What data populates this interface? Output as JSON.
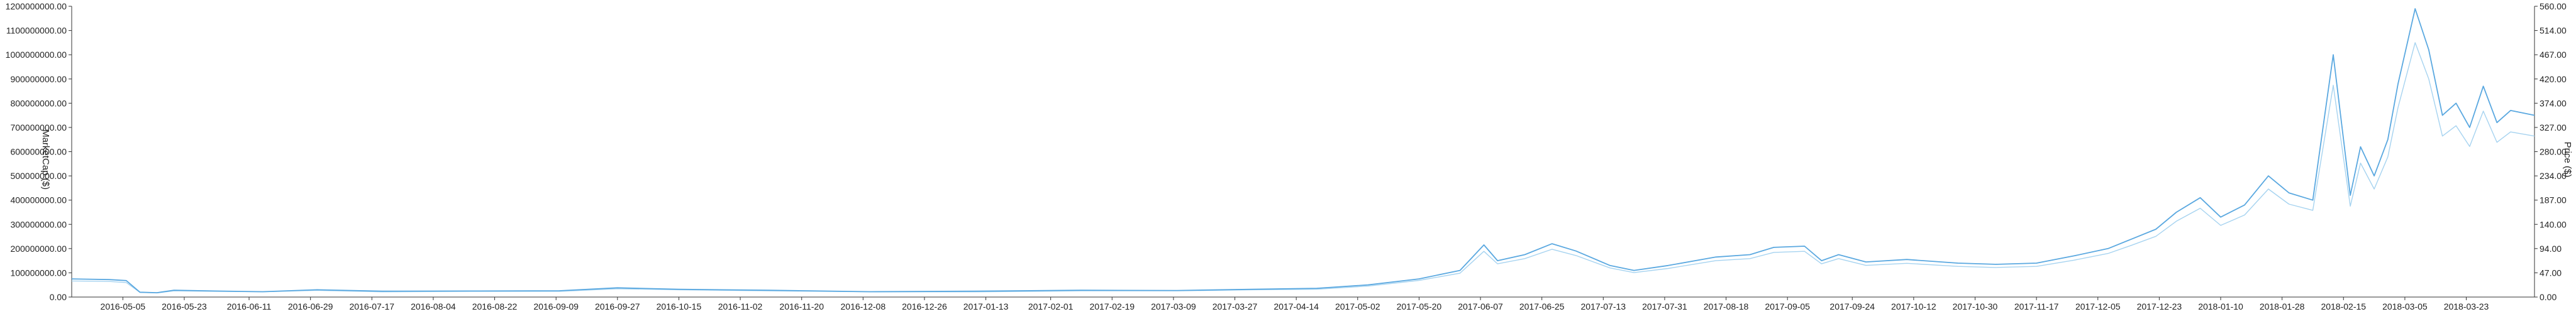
{
  "chart_data": {
    "type": "line",
    "xlabel": "",
    "ylabel_left": "MarketCap ($)",
    "ylabel_right": "Price ($)",
    "left_axis": {
      "min": 0,
      "max": 1200000000,
      "ticks": [
        "0.00",
        "100000000.00",
        "200000000.00",
        "300000000.00",
        "400000000.00",
        "500000000.00",
        "600000000.00",
        "700000000.00",
        "800000000.00",
        "900000000.00",
        "1000000000.00",
        "1100000000.00",
        "1200000000.00"
      ]
    },
    "right_axis": {
      "min": 0,
      "max": 560,
      "ticks": [
        "0.00",
        "47.00",
        "94.00",
        "140.00",
        "187.00",
        "234.00",
        "280.00",
        "327.00",
        "374.00",
        "420.00",
        "467.00",
        "514.00",
        "560.00"
      ]
    },
    "x_domain": [
      "2016-04-20",
      "2018-04-12"
    ],
    "x_ticks": [
      "2016-05-05",
      "2016-05-23",
      "2016-06-11",
      "2016-06-29",
      "2016-07-17",
      "2016-08-04",
      "2016-08-22",
      "2016-09-09",
      "2016-09-27",
      "2016-10-15",
      "2016-11-02",
      "2016-11-20",
      "2016-12-08",
      "2016-12-26",
      "2017-01-13",
      "2017-02-01",
      "2017-02-19",
      "2017-03-09",
      "2017-03-27",
      "2017-04-14",
      "2017-05-02",
      "2017-05-20",
      "2017-06-07",
      "2017-06-25",
      "2017-07-13",
      "2017-07-31",
      "2017-08-18",
      "2017-09-05",
      "2017-09-24",
      "2017-10-12",
      "2017-10-30",
      "2017-11-17",
      "2017-12-05",
      "2017-12-23",
      "2018-01-10",
      "2018-01-28",
      "2018-02-15",
      "2018-03-05",
      "2018-03-23"
    ],
    "grid": false,
    "legend": "none",
    "series": [
      {
        "axis": "left",
        "color": "#5aa8e0",
        "points": [
          [
            "2016-04-20",
            75000000
          ],
          [
            "2016-05-01",
            72000000
          ],
          [
            "2016-05-06",
            68000000
          ],
          [
            "2016-05-10",
            20000000
          ],
          [
            "2016-05-15",
            18000000
          ],
          [
            "2016-05-20",
            28000000
          ],
          [
            "2016-06-01",
            25000000
          ],
          [
            "2016-06-15",
            22000000
          ],
          [
            "2016-07-01",
            30000000
          ],
          [
            "2016-07-20",
            24000000
          ],
          [
            "2016-08-15",
            25000000
          ],
          [
            "2016-09-10",
            26000000
          ],
          [
            "2016-09-27",
            38000000
          ],
          [
            "2016-10-15",
            32000000
          ],
          [
            "2016-11-10",
            28000000
          ],
          [
            "2016-12-10",
            22000000
          ],
          [
            "2017-01-10",
            24000000
          ],
          [
            "2017-02-10",
            28000000
          ],
          [
            "2017-03-10",
            27000000
          ],
          [
            "2017-04-01",
            32000000
          ],
          [
            "2017-04-20",
            36000000
          ],
          [
            "2017-05-05",
            50000000
          ],
          [
            "2017-05-20",
            75000000
          ],
          [
            "2017-06-01",
            110000000
          ],
          [
            "2017-06-08",
            215000000
          ],
          [
            "2017-06-12",
            150000000
          ],
          [
            "2017-06-20",
            175000000
          ],
          [
            "2017-06-28",
            220000000
          ],
          [
            "2017-07-05",
            190000000
          ],
          [
            "2017-07-15",
            130000000
          ],
          [
            "2017-07-22",
            110000000
          ],
          [
            "2017-08-01",
            130000000
          ],
          [
            "2017-08-15",
            165000000
          ],
          [
            "2017-08-25",
            175000000
          ],
          [
            "2017-09-01",
            205000000
          ],
          [
            "2017-09-10",
            210000000
          ],
          [
            "2017-09-15",
            150000000
          ],
          [
            "2017-09-20",
            175000000
          ],
          [
            "2017-09-28",
            145000000
          ],
          [
            "2017-10-10",
            155000000
          ],
          [
            "2017-10-25",
            140000000
          ],
          [
            "2017-11-05",
            135000000
          ],
          [
            "2017-11-17",
            140000000
          ],
          [
            "2017-11-28",
            170000000
          ],
          [
            "2017-12-08",
            200000000
          ],
          [
            "2017-12-15",
            240000000
          ],
          [
            "2017-12-22",
            280000000
          ],
          [
            "2017-12-28",
            350000000
          ],
          [
            "2018-01-04",
            410000000
          ],
          [
            "2018-01-10",
            330000000
          ],
          [
            "2018-01-17",
            380000000
          ],
          [
            "2018-01-24",
            500000000
          ],
          [
            "2018-01-30",
            430000000
          ],
          [
            "2018-02-06",
            400000000
          ],
          [
            "2018-02-12",
            1000000000
          ],
          [
            "2018-02-17",
            420000000
          ],
          [
            "2018-02-20",
            620000000
          ],
          [
            "2018-02-24",
            500000000
          ],
          [
            "2018-02-28",
            650000000
          ],
          [
            "2018-03-03",
            880000000
          ],
          [
            "2018-03-08",
            1190000000
          ],
          [
            "2018-03-12",
            1020000000
          ],
          [
            "2018-03-16",
            750000000
          ],
          [
            "2018-03-20",
            800000000
          ],
          [
            "2018-03-24",
            700000000
          ],
          [
            "2018-03-28",
            870000000
          ],
          [
            "2018-04-01",
            720000000
          ],
          [
            "2018-04-05",
            770000000
          ],
          [
            "2018-04-12",
            750000000
          ]
        ]
      },
      {
        "axis": "right",
        "color": "#a6d3f0",
        "points": [
          [
            "2016-04-20",
            31
          ],
          [
            "2016-05-01",
            30
          ],
          [
            "2016-05-06",
            28
          ],
          [
            "2016-05-10",
            9
          ],
          [
            "2016-05-15",
            8
          ],
          [
            "2016-05-20",
            12
          ],
          [
            "2016-06-01",
            11
          ],
          [
            "2016-06-15",
            10
          ],
          [
            "2016-07-01",
            13
          ],
          [
            "2016-07-20",
            10
          ],
          [
            "2016-08-15",
            11
          ],
          [
            "2016-09-10",
            11
          ],
          [
            "2016-09-27",
            16
          ],
          [
            "2016-10-15",
            14
          ],
          [
            "2016-11-10",
            12
          ],
          [
            "2016-12-10",
            10
          ],
          [
            "2017-01-10",
            10
          ],
          [
            "2017-02-10",
            12
          ],
          [
            "2017-03-10",
            12
          ],
          [
            "2017-04-01",
            14
          ],
          [
            "2017-04-20",
            15
          ],
          [
            "2017-05-05",
            21
          ],
          [
            "2017-05-20",
            32
          ],
          [
            "2017-06-01",
            46
          ],
          [
            "2017-06-08",
            88
          ],
          [
            "2017-06-12",
            64
          ],
          [
            "2017-06-20",
            74
          ],
          [
            "2017-06-28",
            92
          ],
          [
            "2017-07-05",
            80
          ],
          [
            "2017-07-15",
            56
          ],
          [
            "2017-07-22",
            47
          ],
          [
            "2017-08-01",
            55
          ],
          [
            "2017-08-15",
            70
          ],
          [
            "2017-08-25",
            74
          ],
          [
            "2017-09-01",
            86
          ],
          [
            "2017-09-10",
            88
          ],
          [
            "2017-09-15",
            64
          ],
          [
            "2017-09-20",
            74
          ],
          [
            "2017-09-28",
            61
          ],
          [
            "2017-10-10",
            65
          ],
          [
            "2017-10-25",
            59
          ],
          [
            "2017-11-05",
            57
          ],
          [
            "2017-11-17",
            59
          ],
          [
            "2017-11-28",
            71
          ],
          [
            "2017-12-08",
            84
          ],
          [
            "2017-12-15",
            100
          ],
          [
            "2017-12-22",
            117
          ],
          [
            "2017-12-28",
            146
          ],
          [
            "2018-01-04",
            171
          ],
          [
            "2018-01-10",
            138
          ],
          [
            "2018-01-17",
            158
          ],
          [
            "2018-01-24",
            208
          ],
          [
            "2018-01-30",
            179
          ],
          [
            "2018-02-06",
            167
          ],
          [
            "2018-02-12",
            408
          ],
          [
            "2018-02-17",
            175
          ],
          [
            "2018-02-20",
            258
          ],
          [
            "2018-02-24",
            208
          ],
          [
            "2018-02-28",
            270
          ],
          [
            "2018-03-03",
            365
          ],
          [
            "2018-03-08",
            490
          ],
          [
            "2018-03-12",
            420
          ],
          [
            "2018-03-16",
            310
          ],
          [
            "2018-03-20",
            330
          ],
          [
            "2018-03-24",
            290
          ],
          [
            "2018-03-28",
            358
          ],
          [
            "2018-04-01",
            298
          ],
          [
            "2018-04-05",
            318
          ],
          [
            "2018-04-12",
            310
          ]
        ]
      }
    ]
  }
}
